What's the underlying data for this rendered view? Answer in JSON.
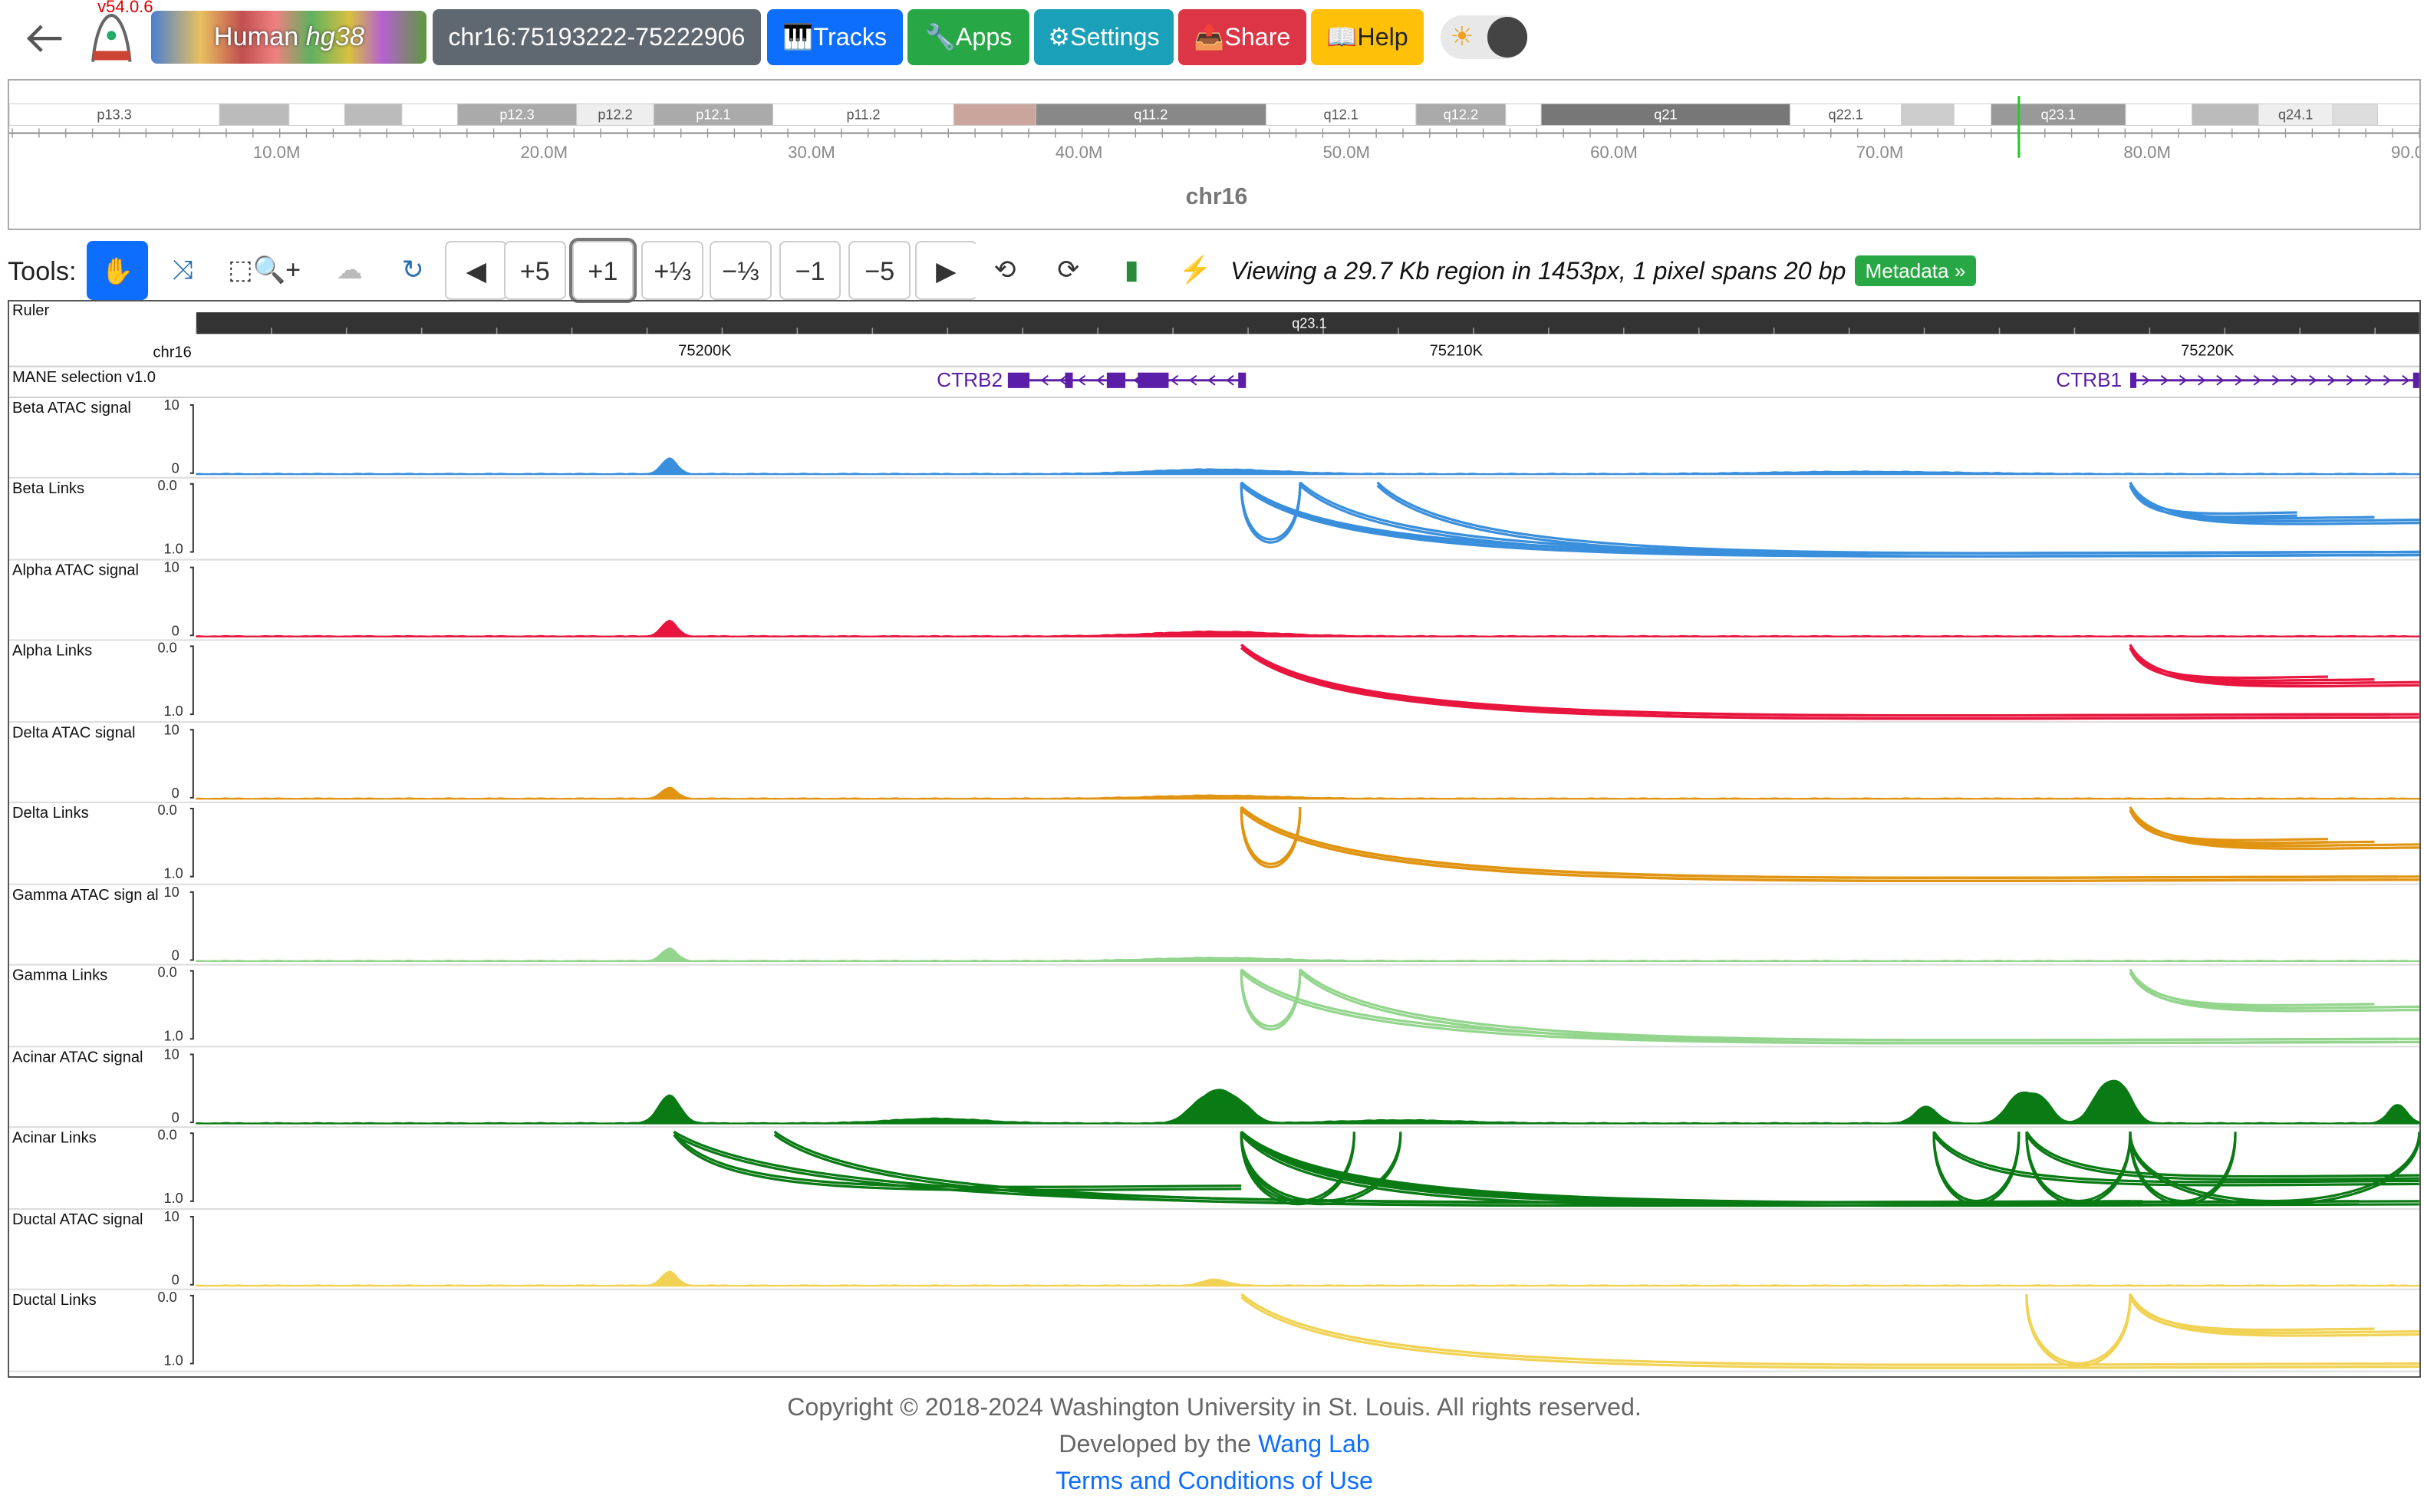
{
  "nav": {
    "version": "v54.0.6",
    "genome_species": "Human",
    "genome_build": "hg38",
    "coordinate": "chr16:75193222-75222906",
    "tracks": "🎹Tracks",
    "apps": "🔧Apps",
    "settings": "⚙Settings",
    "share": "📤Share",
    "help": "📖Help",
    "theme_icon": "sun-icon"
  },
  "ideogram": {
    "chrom": "chr16",
    "bands": [
      "p13.3",
      "p12.3",
      "p12.2",
      "p12.1",
      "p11.2",
      "q11.2",
      "q12.1",
      "q12.2",
      "q21",
      "q22.1",
      "q23.1",
      "q24.1"
    ],
    "ticks": [
      "10.0M",
      "20.0M",
      "30.0M",
      "40.0M",
      "50.0M",
      "60.0M",
      "70.0M",
      "80.0M",
      "90.0M"
    ]
  },
  "toolbar": {
    "label": "Tools:",
    "buttons": [
      "+5",
      "+1",
      "+⅓",
      "−⅓",
      "−1",
      "−5"
    ],
    "viewing": "Viewing a 29.7 Kb region in 1453px, 1 pixel spans 20 bp",
    "metadata": "Metadata »"
  },
  "ruler": {
    "label": "Ruler",
    "chrom": "chr16",
    "band": "q23.1",
    "ticks": [
      "75200K",
      "75210K",
      "75220K"
    ]
  },
  "genes": {
    "track_label": "MANE selection v1.0",
    "names": [
      "CTRB2",
      "CTRB1"
    ]
  },
  "tracks": [
    {
      "signal_label": "Beta ATAC signal",
      "links_label": "Beta Links",
      "color": "#3a8fdc"
    },
    {
      "signal_label": "Alpha ATAC signal",
      "links_label": "Alpha Links",
      "color": "#e8163f"
    },
    {
      "signal_label": "Delta ATAC signal",
      "links_label": "Delta Links",
      "color": "#e19411"
    },
    {
      "signal_label": "Gamma ATAC sign al",
      "links_label": "Gamma Links",
      "color": "#94d58e"
    },
    {
      "signal_label": "Acinar ATAC signal",
      "links_label": "Acinar Links",
      "color": "#0a7a14"
    },
    {
      "signal_label": "Ductal ATAC signal",
      "links_label": "Ductal Links",
      "color": "#f1d254"
    }
  ],
  "scale": {
    "signal_max": "10",
    "signal_min": "0",
    "links_top": "0.0",
    "links_bottom": "1.0"
  },
  "footer": {
    "copyright": "Copyright © 2018-2024 Washington University in St. Louis. All rights reserved.",
    "developed_prefix": "Developed by the",
    "lab_link": "Wang Lab",
    "terms": "Terms and Conditions of Use"
  }
}
